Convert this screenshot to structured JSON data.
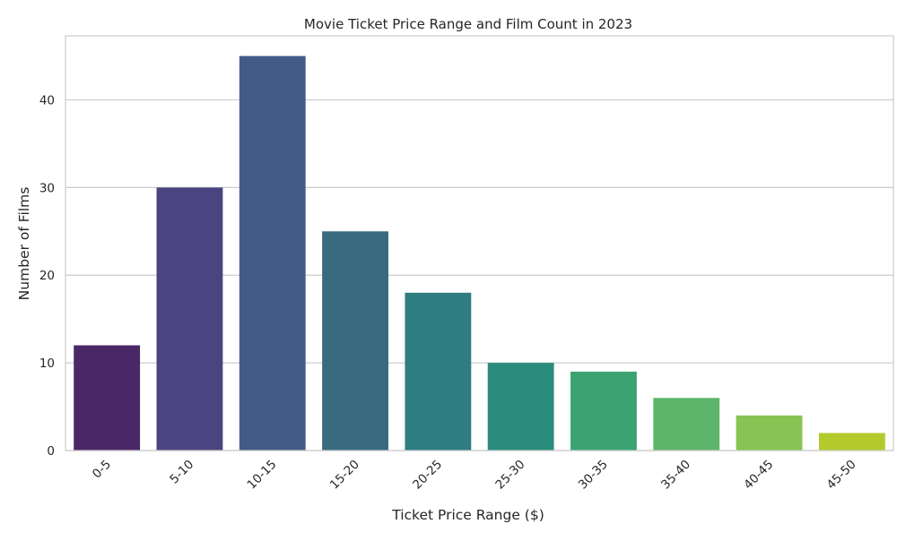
{
  "chart_data": {
    "type": "bar",
    "title": "Movie Ticket Price Range and Film Count in 2023",
    "xlabel": "Ticket Price Range ($)",
    "ylabel": "Number of Films",
    "categories": [
      "0-5",
      "5-10",
      "10-15",
      "15-20",
      "20-25",
      "25-30",
      "30-35",
      "35-40",
      "40-45",
      "45-50"
    ],
    "values": [
      12,
      30,
      45,
      25,
      18,
      10,
      9,
      6,
      4,
      2
    ],
    "ylim": [
      0,
      47.3
    ],
    "yticks": [
      0,
      10,
      20,
      30,
      40
    ],
    "grid": true,
    "colors": [
      "#4a2766",
      "#4a4580",
      "#435b87",
      "#386b80",
      "#2d7d81",
      "#2a8c7d",
      "#3aa371",
      "#5cb56a",
      "#87c453",
      "#b3ca2c"
    ],
    "grid_color": "#cccccc",
    "frame_color": "#cccccc"
  }
}
